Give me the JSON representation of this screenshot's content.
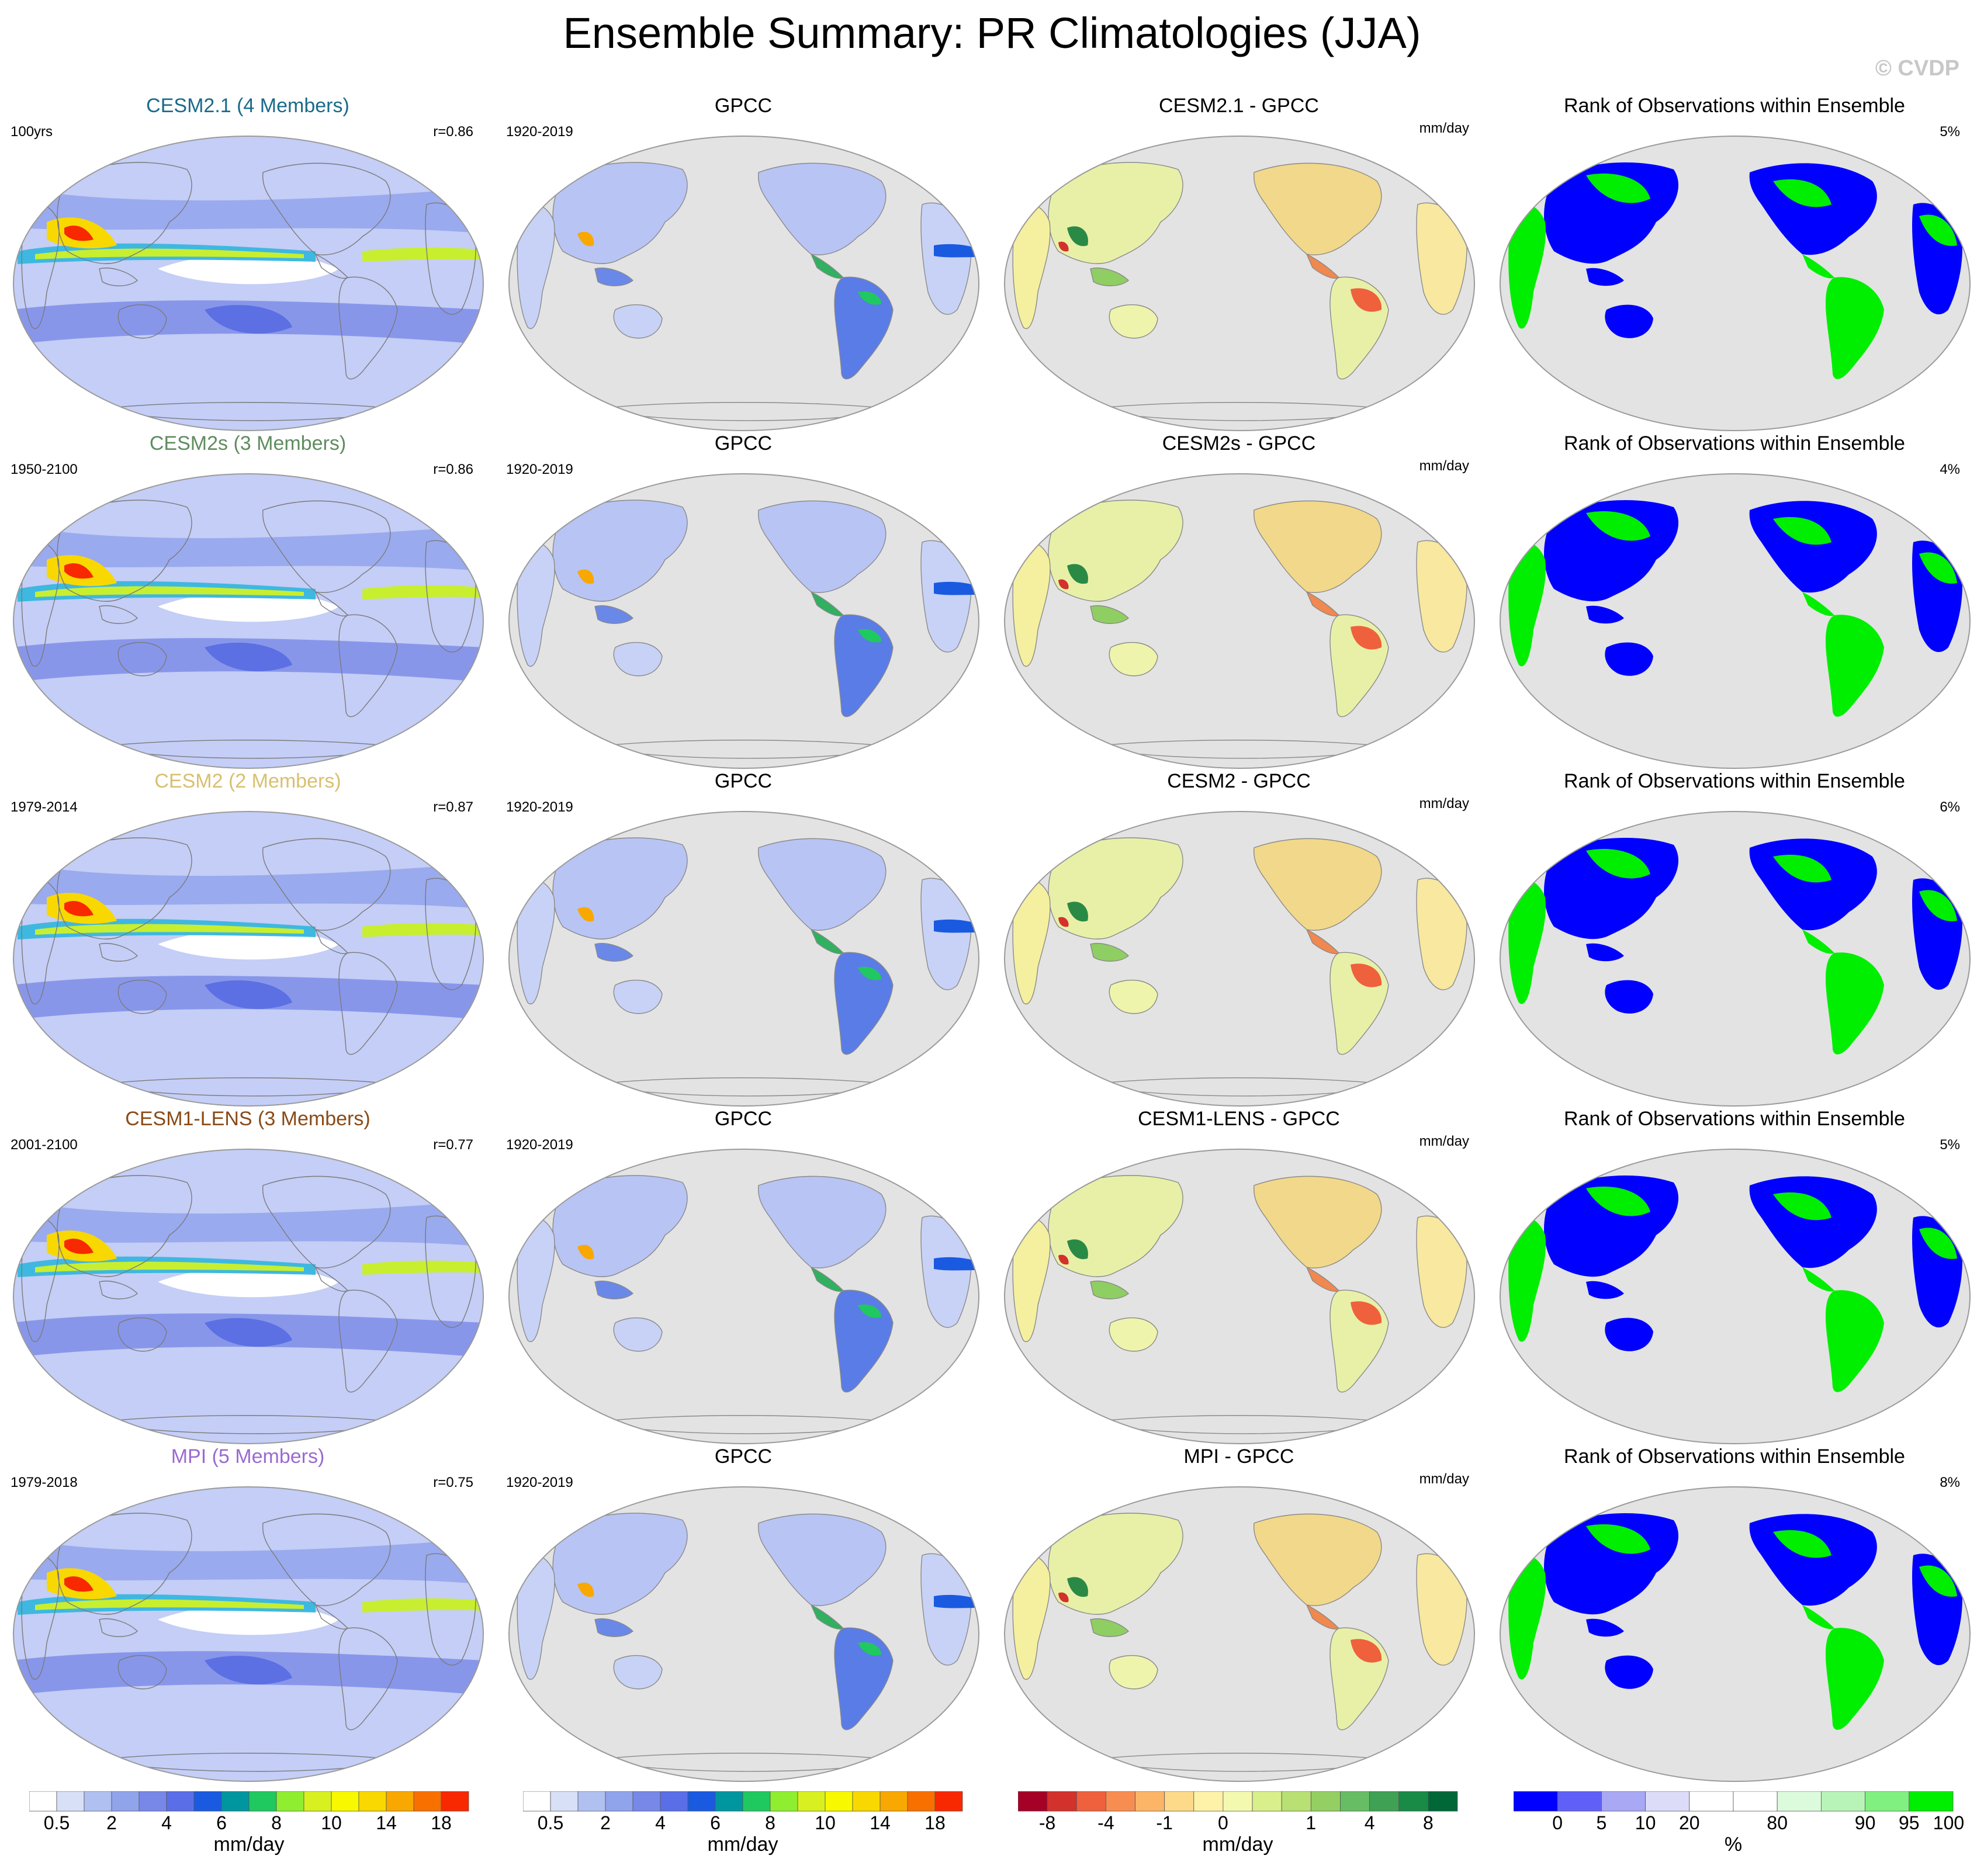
{
  "title": "Ensemble Summary: PR Climatologies (JJA)",
  "copyright": "© CVDP",
  "rows": [
    {
      "model": {
        "title": "CESM2.1 (4 Members)",
        "color": "#1a6a8a",
        "period": "100yrs",
        "corr": "r=0.86"
      },
      "obs": {
        "title": "GPCC",
        "period": "1920-2019"
      },
      "diff": {
        "title": "CESM2.1 - GPCC",
        "unit": "mm/day"
      },
      "rank": {
        "title": "Rank of Observations within Ensemble",
        "pct": "5%"
      }
    },
    {
      "model": {
        "title": "CESM2s (3 Members)",
        "color": "#5f8c5f",
        "period": "1950-2100",
        "corr": "r=0.86"
      },
      "obs": {
        "title": "GPCC",
        "period": "1920-2019"
      },
      "diff": {
        "title": "CESM2s - GPCC",
        "unit": "mm/day"
      },
      "rank": {
        "title": "Rank of Observations within Ensemble",
        "pct": "4%"
      }
    },
    {
      "model": {
        "title": "CESM2 (2 Members)",
        "color": "#d8c070",
        "period": "1979-2014",
        "corr": "r=0.87"
      },
      "obs": {
        "title": "GPCC",
        "period": "1920-2019"
      },
      "diff": {
        "title": "CESM2 - GPCC",
        "unit": "mm/day"
      },
      "rank": {
        "title": "Rank of Observations within Ensemble",
        "pct": "6%"
      }
    },
    {
      "model": {
        "title": "CESM1-LENS (3 Members)",
        "color": "#8a4a16",
        "period": "2001-2100",
        "corr": "r=0.77"
      },
      "obs": {
        "title": "GPCC",
        "period": "1920-2019"
      },
      "diff": {
        "title": "CESM1-LENS - GPCC",
        "unit": "mm/day"
      },
      "rank": {
        "title": "Rank of Observations within Ensemble",
        "pct": "5%"
      }
    },
    {
      "model": {
        "title": "MPI (5 Members)",
        "color": "#9a6ad0",
        "period": "1979-2018",
        "corr": "r=0.75"
      },
      "obs": {
        "title": "GPCC",
        "period": "1920-2019"
      },
      "diff": {
        "title": "MPI - GPCC",
        "unit": "mm/day"
      },
      "rank": {
        "title": "Rank of Observations within Ensemble",
        "pct": "8%"
      }
    }
  ],
  "colorbars": [
    {
      "unit": "mm/day",
      "colors": [
        "#ffffff",
        "#d8e0f8",
        "#b0c0f0",
        "#90a4ec",
        "#7888e8",
        "#5a6ee8",
        "#1a5ae0",
        "#0096a0",
        "#20c860",
        "#90ee30",
        "#d8f020",
        "#f8f800",
        "#f8d800",
        "#f8a800",
        "#f87000",
        "#f82800"
      ],
      "ticks": [
        "0.5",
        "2",
        "4",
        "6",
        "8",
        "10",
        "14",
        "18"
      ]
    },
    {
      "unit": "mm/day",
      "colors": [
        "#ffffff",
        "#d8e0f8",
        "#b0c0f0",
        "#90a4ec",
        "#7888e8",
        "#5a6ee8",
        "#1a5ae0",
        "#0096a0",
        "#20c860",
        "#90ee30",
        "#d8f020",
        "#f8f800",
        "#f8d800",
        "#f8a800",
        "#f87000",
        "#f82800"
      ],
      "ticks": [
        "0.5",
        "2",
        "4",
        "6",
        "8",
        "10",
        "14",
        "18"
      ]
    },
    {
      "unit": "mm/day",
      "colors": [
        "#a50026",
        "#d3312c",
        "#ee613c",
        "#f88d52",
        "#fcb567",
        "#fdd98a",
        "#fef1a8",
        "#f4f9b0",
        "#d9ef8b",
        "#b8e072",
        "#93cf63",
        "#66bd63",
        "#3ea153",
        "#1a8a47",
        "#006837"
      ],
      "ticks": [
        "-8",
        "-4",
        "-1",
        "0",
        "1",
        "4",
        "8"
      ]
    },
    {
      "unit": "%",
      "colors": [
        "#0000ff",
        "#6060f8",
        "#a8a8f4",
        "#dcdcf8",
        "#ffffff",
        "#ffffff",
        "#dcfadc",
        "#b8f4b8",
        "#80f080",
        "#00ee00"
      ],
      "ticks": [
        "0",
        "5",
        "10",
        "20",
        "80",
        "90",
        "95",
        "100"
      ]
    }
  ]
}
